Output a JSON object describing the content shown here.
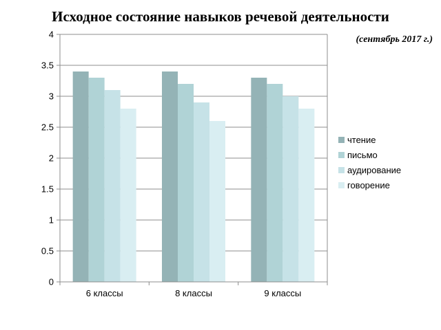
{
  "chart_data": {
    "type": "bar",
    "title": "Исходное состояние навыков речевой деятельности",
    "subtitle": "(сентябрь 2017 г.)",
    "categories": [
      "6 классы",
      "8 классы",
      "9 классы"
    ],
    "series": [
      {
        "name": "чтение",
        "values": [
          3.4,
          3.4,
          3.3
        ],
        "color": "#94b3b6"
      },
      {
        "name": "письмо",
        "values": [
          3.3,
          3.2,
          3.2
        ],
        "color": "#b0d3d6"
      },
      {
        "name": "аудирование",
        "values": [
          3.1,
          2.9,
          3.0
        ],
        "color": "#c6e2e7"
      },
      {
        "name": "говорение",
        "values": [
          2.8,
          2.6,
          2.8
        ],
        "color": "#d9eef2"
      }
    ],
    "yticks": [
      "0",
      "0.5",
      "1",
      "1.5",
      "2",
      "2.5",
      "3",
      "3.5",
      "4"
    ],
    "ylim": [
      0,
      4
    ],
    "grid": true,
    "legend": "right"
  }
}
